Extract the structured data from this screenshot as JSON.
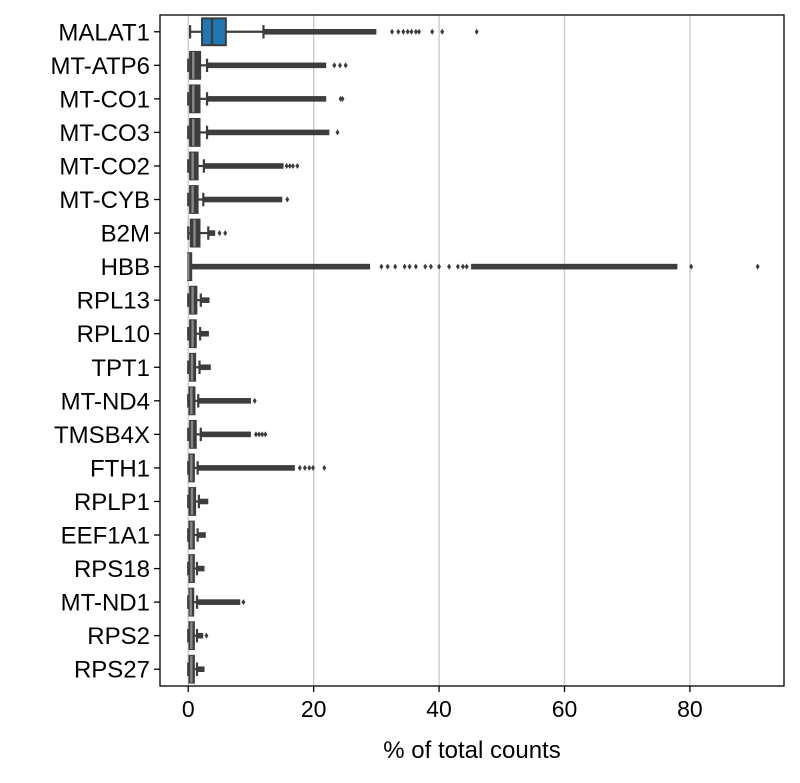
{
  "chart_data": {
    "type": "boxplot",
    "orientation": "horizontal",
    "xlabel": "% of total counts",
    "ylabel": "",
    "title": "",
    "xlim": [
      -4.5,
      95
    ],
    "xticks": [
      0,
      20,
      40,
      60,
      80
    ],
    "grid": "vertical",
    "box_color": "#1f77b4",
    "other_box_color": "#3d3d3d",
    "categories": [
      "MALAT1",
      "MT-ATP6",
      "MT-CO1",
      "MT-CO3",
      "MT-CO2",
      "MT-CYB",
      "B2M",
      "HBB",
      "RPL13",
      "RPL10",
      "TPT1",
      "MT-ND4",
      "TMSB4X",
      "FTH1",
      "RPLP1",
      "EEF1A1",
      "RPS18",
      "MT-ND1",
      "RPS2",
      "RPS27"
    ],
    "series": [
      {
        "gene": "MALAT1",
        "whisker_low": 0.3,
        "q1": 2.2,
        "median": 3.8,
        "q3": 6.0,
        "whisker_high": 12.0,
        "dense_outliers": [
          12.0,
          30.0
        ],
        "outliers": [
          32.5,
          33.5,
          34.3,
          35.0,
          35.6,
          36.3,
          36.8,
          38.9,
          40.5,
          46.0
        ]
      },
      {
        "gene": "MT-ATP6",
        "whisker_low": 0.0,
        "q1": 0.3,
        "median": 0.8,
        "q3": 1.9,
        "whisker_high": 3.0,
        "dense_outliers": [
          3.0,
          22.0
        ],
        "outliers": [
          23.3,
          24.2,
          25.1
        ]
      },
      {
        "gene": "MT-CO1",
        "whisker_low": 0.0,
        "q1": 0.3,
        "median": 0.8,
        "q3": 1.8,
        "whisker_high": 3.0,
        "dense_outliers": [
          3.0,
          22.0
        ],
        "outliers": [
          24.3,
          24.6
        ]
      },
      {
        "gene": "MT-CO3",
        "whisker_low": 0.0,
        "q1": 0.3,
        "median": 0.8,
        "q3": 1.8,
        "whisker_high": 3.0,
        "dense_outliers": [
          3.0,
          22.5
        ],
        "outliers": [
          23.8
        ]
      },
      {
        "gene": "MT-CO2",
        "whisker_low": 0.0,
        "q1": 0.3,
        "median": 0.7,
        "q3": 1.5,
        "whisker_high": 2.5,
        "dense_outliers": [
          2.5,
          15.2
        ],
        "outliers": [
          15.7,
          16.2,
          16.7,
          17.4
        ]
      },
      {
        "gene": "MT-CYB",
        "whisker_low": 0.0,
        "q1": 0.3,
        "median": 0.7,
        "q3": 1.5,
        "whisker_high": 2.4,
        "dense_outliers": [
          2.4,
          15.0
        ],
        "outliers": [
          15.8
        ]
      },
      {
        "gene": "B2M",
        "whisker_low": 0.0,
        "q1": 0.4,
        "median": 1.0,
        "q3": 1.8,
        "whisker_high": 3.2,
        "dense_outliers": [
          3.2,
          4.3
        ],
        "outliers": [
          5.0,
          5.9
        ]
      },
      {
        "gene": "HBB",
        "whisker_low": 0.0,
        "q1": 0.0,
        "median": 0.0,
        "q3": 0.1,
        "whisker_high": 0.2,
        "dense_outliers": [
          0.2,
          29.0
        ],
        "outliers": [
          30.8,
          31.8,
          33.0,
          34.5,
          35.3,
          36.3,
          37.8,
          38.7,
          40.0,
          41.6,
          43.0,
          43.8,
          44.4
        ],
        "dense_outliers_2": [
          45.1,
          78.0
        ],
        "outliers_2": [
          80.2,
          90.8
        ]
      },
      {
        "gene": "RPL13",
        "whisker_low": 0.0,
        "q1": 0.3,
        "median": 0.7,
        "q3": 1.3,
        "whisker_high": 2.0,
        "dense_outliers": [
          2.0,
          3.4
        ],
        "outliers": []
      },
      {
        "gene": "RPL10",
        "whisker_low": 0.0,
        "q1": 0.3,
        "median": 0.7,
        "q3": 1.2,
        "whisker_high": 1.9,
        "dense_outliers": [
          1.9,
          3.3
        ],
        "outliers": []
      },
      {
        "gene": "TPT1",
        "whisker_low": 0.0,
        "q1": 0.3,
        "median": 0.6,
        "q3": 1.1,
        "whisker_high": 1.8,
        "dense_outliers": [
          1.8,
          3.6
        ],
        "outliers": []
      },
      {
        "gene": "MT-ND4",
        "whisker_low": 0.0,
        "q1": 0.2,
        "median": 0.5,
        "q3": 1.0,
        "whisker_high": 1.6,
        "dense_outliers": [
          1.6,
          10.0
        ],
        "outliers": [
          10.6
        ]
      },
      {
        "gene": "TMSB4X",
        "whisker_low": 0.0,
        "q1": 0.3,
        "median": 0.6,
        "q3": 1.2,
        "whisker_high": 2.0,
        "dense_outliers": [
          2.0,
          10.0
        ],
        "outliers": [
          10.8,
          11.3,
          11.8,
          12.3
        ]
      },
      {
        "gene": "FTH1",
        "whisker_low": 0.0,
        "q1": 0.2,
        "median": 0.5,
        "q3": 0.9,
        "whisker_high": 1.5,
        "dense_outliers": [
          1.5,
          17.0
        ],
        "outliers": [
          17.8,
          18.6,
          19.3,
          19.9,
          21.7
        ]
      },
      {
        "gene": "RPLP1",
        "whisker_low": 0.0,
        "q1": 0.2,
        "median": 0.6,
        "q3": 1.1,
        "whisker_high": 1.7,
        "dense_outliers": [
          1.7,
          3.2
        ],
        "outliers": []
      },
      {
        "gene": "EEF1A1",
        "whisker_low": 0.0,
        "q1": 0.2,
        "median": 0.5,
        "q3": 0.9,
        "whisker_high": 1.5,
        "dense_outliers": [
          1.5,
          2.8
        ],
        "outliers": []
      },
      {
        "gene": "RPS18",
        "whisker_low": 0.0,
        "q1": 0.2,
        "median": 0.5,
        "q3": 0.9,
        "whisker_high": 1.4,
        "dense_outliers": [
          1.4,
          2.6
        ],
        "outliers": []
      },
      {
        "gene": "MT-ND1",
        "whisker_low": 0.0,
        "q1": 0.2,
        "median": 0.4,
        "q3": 0.8,
        "whisker_high": 1.4,
        "dense_outliers": [
          1.4,
          8.3
        ],
        "outliers": [
          8.8
        ]
      },
      {
        "gene": "RPS2",
        "whisker_low": 0.0,
        "q1": 0.2,
        "median": 0.5,
        "q3": 0.9,
        "whisker_high": 1.4,
        "dense_outliers": [
          1.4,
          2.4
        ],
        "outliers": [
          2.9
        ]
      },
      {
        "gene": "RPS27",
        "whisker_low": 0.0,
        "q1": 0.2,
        "median": 0.5,
        "q3": 0.9,
        "whisker_high": 1.4,
        "dense_outliers": [
          1.4,
          2.6
        ],
        "outliers": []
      }
    ]
  }
}
